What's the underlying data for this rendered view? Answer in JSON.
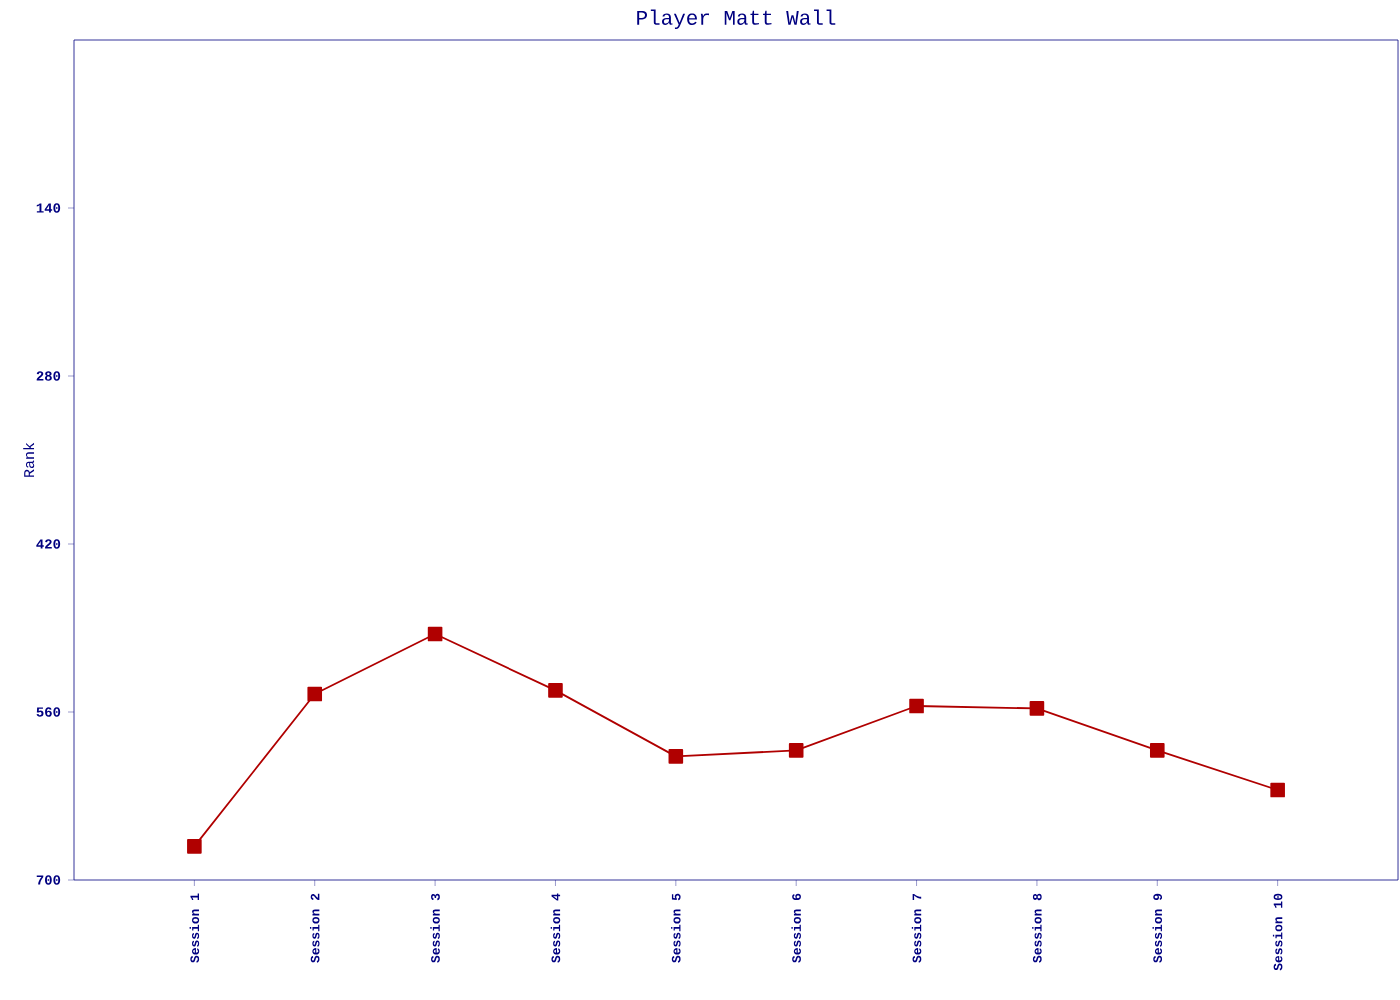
{
  "chart_data": {
    "type": "line",
    "title": "Player Matt Wall",
    "ylabel": "Rank",
    "categories": [
      "Session 1",
      "Session 2",
      "Session 3",
      "Session 4",
      "Session 5",
      "Session 6",
      "Session 7",
      "Session 8",
      "Session 9",
      "Session 10"
    ],
    "series": [
      {
        "color": "#b00000",
        "values": [
          672,
          545,
          495,
          542,
          597,
          592,
          555,
          557,
          592,
          625
        ]
      }
    ],
    "ylim": [
      700,
      0
    ],
    "yticks": [
      140,
      280,
      420,
      560,
      700
    ],
    "marker": "square",
    "line_style": "solid",
    "grid": false
  }
}
